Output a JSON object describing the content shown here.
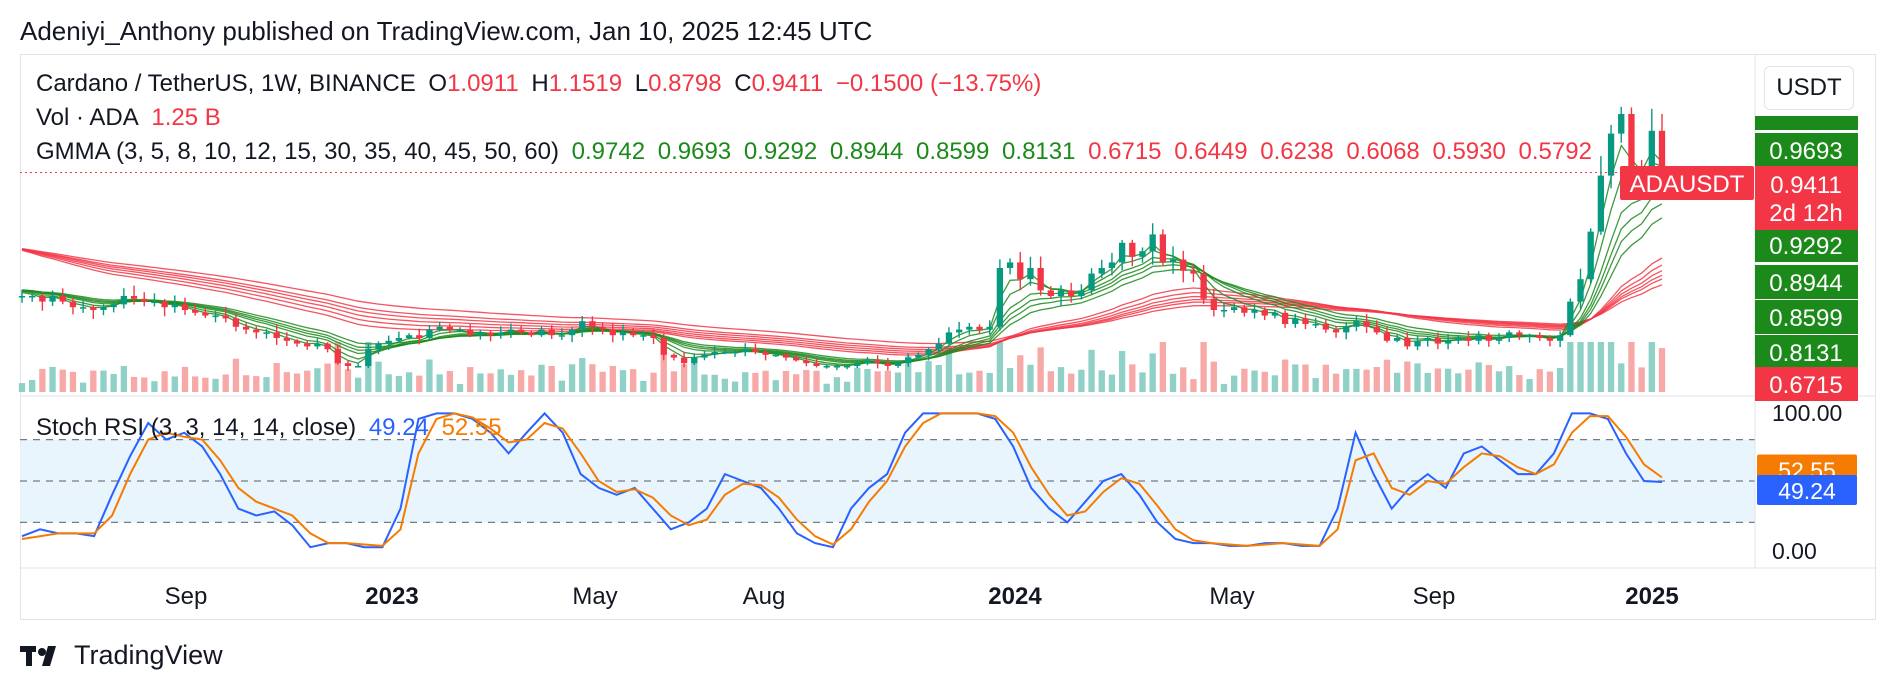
{
  "header": {
    "published": "Adeniyi_Anthony published on TradingView.com, Jan 10, 2025 12:45 UTC"
  },
  "legend": {
    "symbol": "Cardano / TetherUS, 1W, BINANCE",
    "o_label": "O",
    "o": "1.0911",
    "h_label": "H",
    "h": "1.1519",
    "l_label": "L",
    "l": "0.8798",
    "c_label": "C",
    "c": "0.9411",
    "change": "−0.1500 (−13.75%)",
    "vol_label": "Vol · ADA",
    "vol": "1.25 B",
    "gmma_label": "GMMA (3, 5, 8, 10, 12, 15, 30, 35, 40, 45, 50, 60)",
    "gmma_short": [
      "0.9742",
      "0.9693",
      "0.9292",
      "0.8944",
      "0.8599",
      "0.8131"
    ],
    "gmma_long": [
      "0.6715",
      "0.6449",
      "0.6238",
      "0.6068",
      "0.5930",
      "0.5792"
    ],
    "stoch_label": "Stoch RSI (3, 3, 14, 14, close)",
    "stoch_k": "49.24",
    "stoch_d": "52.55"
  },
  "currency_button": "USDT",
  "symbol_tag": "ADAUSDT",
  "price_tag": {
    "price": "0.9411",
    "countdown": "2d 12h"
  },
  "axis_tags": [
    "0.9693",
    "0.9292",
    "0.8944",
    "0.8599",
    "0.8131",
    "0.6715"
  ],
  "brand": "TradingView",
  "colors": {
    "up": "#089981",
    "down": "#f23645",
    "gmma_short": "#1b8a1b",
    "gmma_long": "#f23645",
    "stoch_k": "#2962ff",
    "stoch_d": "#f57c00",
    "band": "#e3f2fd"
  },
  "chart_data": [
    {
      "type": "candlestick",
      "symbol": "ADAUSDT",
      "interval": "1W",
      "x_ticks": [
        "Sep",
        "2023",
        "May",
        "Aug",
        "2024",
        "May",
        "Sep",
        "2025"
      ],
      "weekly_close": [
        0.5,
        0.5,
        0.48,
        0.5,
        0.48,
        0.46,
        0.46,
        0.45,
        0.46,
        0.47,
        0.5,
        0.49,
        0.48,
        0.48,
        0.46,
        0.47,
        0.45,
        0.44,
        0.43,
        0.43,
        0.42,
        0.39,
        0.38,
        0.37,
        0.37,
        0.35,
        0.34,
        0.33,
        0.32,
        0.33,
        0.31,
        0.26,
        0.25,
        0.25,
        0.31,
        0.33,
        0.34,
        0.35,
        0.36,
        0.35,
        0.38,
        0.39,
        0.38,
        0.38,
        0.36,
        0.37,
        0.36,
        0.37,
        0.38,
        0.37,
        0.36,
        0.38,
        0.36,
        0.36,
        0.38,
        0.41,
        0.39,
        0.38,
        0.36,
        0.37,
        0.36,
        0.36,
        0.35,
        0.29,
        0.28,
        0.26,
        0.28,
        0.29,
        0.3,
        0.3,
        0.3,
        0.31,
        0.3,
        0.29,
        0.29,
        0.28,
        0.27,
        0.26,
        0.25,
        0.25,
        0.25,
        0.25,
        0.26,
        0.27,
        0.26,
        0.25,
        0.26,
        0.28,
        0.29,
        0.31,
        0.33,
        0.37,
        0.38,
        0.39,
        0.38,
        0.39,
        0.6,
        0.62,
        0.56,
        0.6,
        0.52,
        0.5,
        0.52,
        0.5,
        0.52,
        0.58,
        0.6,
        0.62,
        0.69,
        0.64,
        0.66,
        0.72,
        0.62,
        0.63,
        0.59,
        0.58,
        0.49,
        0.45,
        0.45,
        0.46,
        0.44,
        0.45,
        0.43,
        0.44,
        0.4,
        0.42,
        0.4,
        0.4,
        0.38,
        0.37,
        0.39,
        0.41,
        0.39,
        0.37,
        0.34,
        0.35,
        0.32,
        0.34,
        0.35,
        0.33,
        0.34,
        0.35,
        0.34,
        0.36,
        0.34,
        0.35,
        0.37,
        0.36,
        0.36,
        0.35,
        0.34,
        0.36,
        0.48,
        0.56,
        0.73,
        0.93,
        1.08,
        1.15,
        0.94,
        0.9,
        1.09,
        0.94
      ],
      "volume": {
        "label": "Vol · ADA",
        "last": "1.25 B"
      },
      "gmma": {
        "periods": [
          3,
          5,
          8,
          10,
          12,
          15,
          30,
          35,
          40,
          45,
          50,
          60
        ],
        "short_values": [
          0.9742,
          0.9693,
          0.9292,
          0.8944,
          0.8599,
          0.8131
        ],
        "long_values": [
          0.6715,
          0.6449,
          0.6238,
          0.6068,
          0.593,
          0.5792
        ]
      },
      "last": {
        "open": 1.0911,
        "high": 1.1519,
        "low": 0.8798,
        "close": 0.9411,
        "change": -0.15,
        "change_pct": -13.75
      },
      "y_axis": "right"
    },
    {
      "type": "line",
      "name": "Stoch RSI (3, 3, 14, 14, close)",
      "ylim": [
        0,
        100
      ],
      "y_ticks": [
        "100.00",
        "0.00"
      ],
      "levels": [
        80,
        50,
        20
      ],
      "series": [
        {
          "name": "K",
          "last": 49.24,
          "values": [
            10,
            15,
            12,
            12,
            10,
            40,
            68,
            92,
            80,
            85,
            75,
            55,
            30,
            25,
            28,
            18,
            2,
            5,
            5,
            2,
            2,
            30,
            95,
            99,
            99,
            95,
            85,
            70,
            85,
            99,
            85,
            55,
            45,
            40,
            45,
            30,
            15,
            20,
            30,
            55,
            50,
            45,
            30,
            12,
            5,
            2,
            30,
            45,
            55,
            85,
            99,
            99,
            99,
            99,
            95,
            75,
            45,
            30,
            20,
            35,
            50,
            55,
            40,
            20,
            8,
            5,
            5,
            3,
            3,
            5,
            5,
            3,
            3,
            30,
            85,
            55,
            30,
            45,
            55,
            45,
            70,
            75,
            65,
            55,
            55,
            70,
            99,
            99,
            95,
            70,
            50,
            49.24
          ]
        },
        {
          "name": "D",
          "last": 52.55,
          "values": [
            8,
            10,
            12,
            12,
            12,
            25,
            55,
            80,
            85,
            82,
            80,
            65,
            45,
            35,
            30,
            25,
            12,
            5,
            5,
            4,
            3,
            15,
            70,
            95,
            99,
            96,
            88,
            78,
            80,
            92,
            88,
            70,
            50,
            42,
            44,
            38,
            25,
            18,
            22,
            40,
            48,
            47,
            38,
            22,
            10,
            4,
            15,
            35,
            50,
            75,
            92,
            99,
            99,
            99,
            97,
            85,
            60,
            40,
            25,
            28,
            42,
            52,
            48,
            32,
            15,
            7,
            5,
            4,
            3,
            4,
            5,
            4,
            3,
            15,
            65,
            70,
            45,
            40,
            50,
            48,
            60,
            70,
            68,
            60,
            55,
            62,
            85,
            97,
            97,
            82,
            62,
            52.55
          ]
        }
      ]
    }
  ]
}
